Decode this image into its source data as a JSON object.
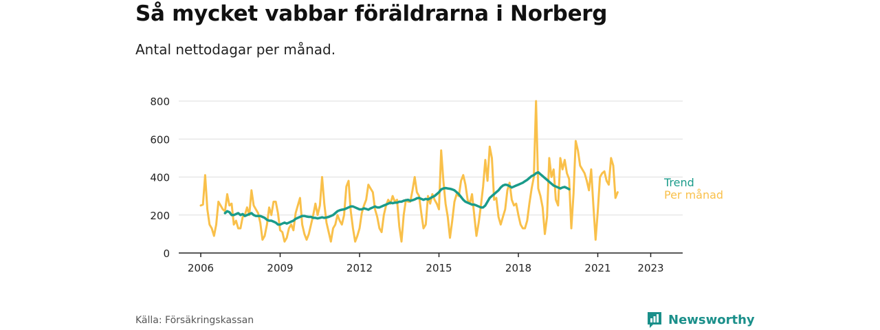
{
  "title": "Så mycket vabbar föräldrarna i Norberg",
  "subtitle": "Antal nettodagar per månad.",
  "source": "Källa: Försäkringskassan",
  "brand": "Newsworthy",
  "colors": {
    "trend": "#1a9b8a",
    "monthly": "#f9c04a",
    "grid": "#dddddd",
    "axis": "#222222",
    "brand": "#1a8f8a"
  },
  "chart_data": {
    "type": "line",
    "x_start": "2006-01",
    "x_ticks": [
      "2006",
      "2009",
      "2012",
      "2015",
      "2018",
      "2021",
      "2023"
    ],
    "ylim": [
      0,
      800
    ],
    "y_ticks": [
      0,
      200,
      400,
      600,
      800
    ],
    "grid": true,
    "series": [
      {
        "name": "Per månad",
        "start": "2006-01",
        "values": [
          250,
          255,
          410,
          230,
          150,
          130,
          90,
          150,
          270,
          250,
          230,
          220,
          310,
          250,
          260,
          150,
          170,
          130,
          130,
          190,
          200,
          240,
          200,
          330,
          250,
          230,
          210,
          160,
          70,
          90,
          150,
          240,
          200,
          270,
          270,
          210,
          120,
          110,
          60,
          80,
          130,
          150,
          120,
          210,
          250,
          290,
          150,
          100,
          70,
          100,
          150,
          200,
          260,
          200,
          250,
          400,
          260,
          160,
          110,
          60,
          130,
          150,
          200,
          170,
          150,
          200,
          350,
          380,
          220,
          130,
          60,
          90,
          130,
          210,
          250,
          280,
          360,
          340,
          320,
          230,
          190,
          130,
          110,
          200,
          250,
          280,
          260,
          300,
          270,
          280,
          140,
          60,
          200,
          280,
          270,
          270,
          330,
          400,
          320,
          300,
          210,
          130,
          150,
          300,
          260,
          310,
          280,
          260,
          230,
          540,
          380,
          260,
          190,
          80,
          170,
          270,
          310,
          300,
          380,
          410,
          360,
          280,
          260,
          310,
          200,
          90,
          160,
          250,
          350,
          490,
          380,
          560,
          500,
          280,
          290,
          190,
          150,
          190,
          230,
          330,
          370,
          280,
          250,
          260,
          200,
          150,
          130,
          130,
          170,
          260,
          340,
          400,
          800,
          340,
          300,
          240,
          100,
          190,
          500,
          400,
          440,
          280,
          250,
          500,
          440,
          490,
          420,
          390,
          130,
          310,
          590,
          540,
          460,
          440,
          420,
          380,
          330,
          440,
          250,
          70,
          220,
          400,
          420,
          430,
          380,
          360,
          500,
          460,
          290,
          320
        ]
      },
      {
        "name": "Trend",
        "start": "2006-12",
        "values": [
          210,
          220,
          215,
          200,
          200,
          205,
          210,
          200,
          205,
          195,
          200,
          205,
          210,
          200,
          195,
          195,
          195,
          190,
          185,
          175,
          170,
          170,
          165,
          160,
          150,
          150,
          155,
          160,
          155,
          160,
          165,
          170,
          180,
          185,
          190,
          195,
          195,
          192,
          190,
          190,
          185,
          185,
          182,
          185,
          188,
          185,
          187,
          190,
          195,
          200,
          210,
          220,
          225,
          228,
          230,
          235,
          240,
          245,
          245,
          240,
          235,
          230,
          230,
          235,
          232,
          228,
          235,
          240,
          245,
          240,
          240,
          245,
          250,
          255,
          260,
          265,
          262,
          265,
          265,
          270,
          270,
          275,
          278,
          280,
          275,
          278,
          282,
          288,
          290,
          285,
          280,
          285,
          282,
          288,
          295,
          300,
          310,
          320,
          335,
          340,
          342,
          340,
          338,
          335,
          330,
          320,
          310,
          295,
          280,
          270,
          265,
          260,
          255,
          255,
          250,
          245,
          240,
          240,
          250,
          270,
          290,
          300,
          310,
          320,
          330,
          345,
          355,
          360,
          358,
          352,
          345,
          350,
          355,
          360,
          365,
          370,
          378,
          385,
          395,
          405,
          410,
          420,
          425,
          415,
          405,
          395,
          385,
          375,
          365,
          355,
          350,
          345,
          340,
          345,
          348,
          342,
          336
        ]
      }
    ]
  }
}
